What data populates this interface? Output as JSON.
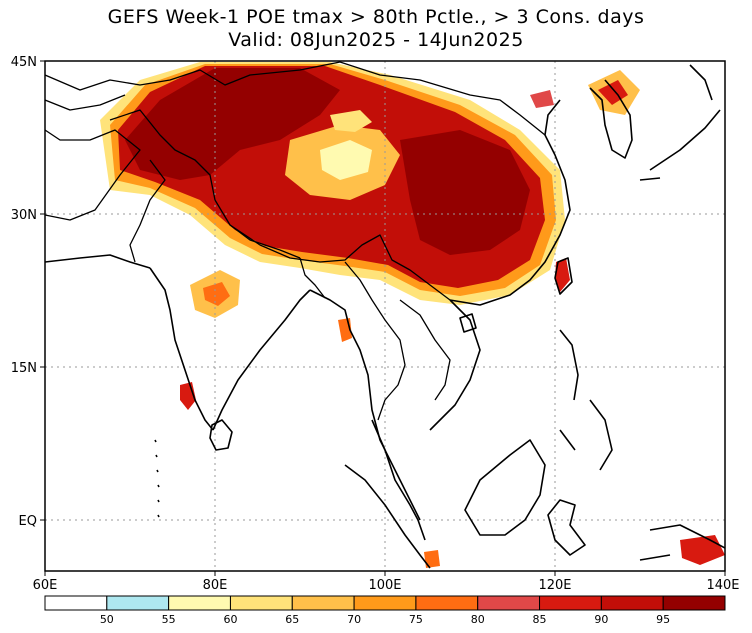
{
  "title": {
    "line1": "GEFS Week-1 POE tmax > 80th Pctle., > 3 Cons. days",
    "line2": "Valid: 08Jun2025 - 14Jun2025"
  },
  "map": {
    "lon_range": [
      60,
      140
    ],
    "lat_range": [
      -5,
      45
    ],
    "lat_labels": [
      "45N",
      "30N",
      "15N",
      "EQ"
    ],
    "lat_values": [
      45,
      30,
      15,
      0
    ],
    "lon_labels": [
      "60E",
      "80E",
      "100E",
      "120E",
      "140E"
    ],
    "lon_values": [
      60,
      80,
      100,
      120,
      140
    ],
    "gridlines": true
  },
  "colorbar": {
    "colors": [
      "#ffffff",
      "#aee8f0",
      "#fffab0",
      "#ffe37a",
      "#ffc04a",
      "#ff9a1a",
      "#ff6d12",
      "#e04848",
      "#d81a10",
      "#c20e08",
      "#940000"
    ],
    "labels": [
      "50",
      "55",
      "60",
      "65",
      "70",
      "75",
      "80",
      "85",
      "90",
      "95"
    ]
  }
}
